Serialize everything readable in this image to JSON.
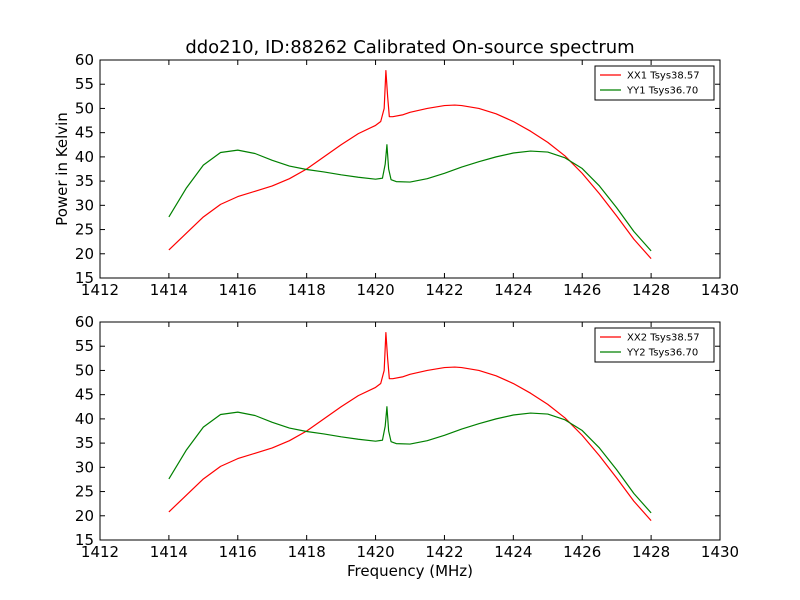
{
  "chart_data": [
    {
      "type": "line",
      "title": "ddo210, ID:88262 Calibrated On-source spectrum",
      "xlabel": "",
      "ylabel": "Power in Kelvin",
      "xlim": [
        1412,
        1430
      ],
      "ylim": [
        15,
        60
      ],
      "xticks": [
        "1412",
        "1414",
        "1416",
        "1418",
        "1420",
        "1422",
        "1424",
        "1426",
        "1428",
        "1430"
      ],
      "yticks": [
        "15",
        "20",
        "25",
        "30",
        "35",
        "40",
        "45",
        "50",
        "55",
        "60"
      ],
      "grid": false,
      "legend_position": "top-right",
      "series": [
        {
          "name": "XX1 Tsys38.57",
          "color": "#ff0000",
          "x": [
            1414.0,
            1414.5,
            1415.0,
            1415.5,
            1416.0,
            1416.5,
            1417.0,
            1417.5,
            1418.0,
            1418.5,
            1419.0,
            1419.5,
            1420.0,
            1420.15,
            1420.25,
            1420.3,
            1420.35,
            1420.4,
            1420.5,
            1420.8,
            1421.0,
            1421.5,
            1422.0,
            1422.3,
            1422.5,
            1423.0,
            1423.5,
            1424.0,
            1424.5,
            1425.0,
            1425.5,
            1426.0,
            1426.5,
            1427.0,
            1427.5,
            1428.0
          ],
          "y": [
            20.8,
            24.2,
            27.6,
            30.2,
            31.8,
            32.9,
            34.0,
            35.5,
            37.5,
            40.0,
            42.5,
            44.8,
            46.5,
            47.3,
            50.0,
            57.8,
            52.5,
            48.3,
            48.3,
            48.7,
            49.2,
            50.0,
            50.6,
            50.7,
            50.6,
            50.0,
            48.9,
            47.3,
            45.3,
            43.0,
            40.2,
            36.6,
            32.4,
            27.8,
            23.0,
            19.0
          ]
        },
        {
          "name": "YY1 Tsys36.70",
          "color": "#008000",
          "x": [
            1414.0,
            1414.5,
            1415.0,
            1415.5,
            1416.0,
            1416.5,
            1417.0,
            1417.5,
            1418.0,
            1418.5,
            1419.0,
            1419.5,
            1420.0,
            1420.2,
            1420.28,
            1420.33,
            1420.38,
            1420.45,
            1420.6,
            1421.0,
            1421.5,
            1422.0,
            1422.5,
            1423.0,
            1423.5,
            1424.0,
            1424.5,
            1425.0,
            1425.5,
            1426.0,
            1426.5,
            1427.0,
            1427.5,
            1428.0
          ],
          "y": [
            27.6,
            33.5,
            38.3,
            40.9,
            41.4,
            40.7,
            39.3,
            38.1,
            37.4,
            36.9,
            36.3,
            35.8,
            35.4,
            35.6,
            38.5,
            42.5,
            37.5,
            35.3,
            34.9,
            34.8,
            35.5,
            36.6,
            37.9,
            39.0,
            40.0,
            40.8,
            41.2,
            41.0,
            39.8,
            37.6,
            34.0,
            29.5,
            24.6,
            20.6
          ]
        }
      ]
    },
    {
      "type": "line",
      "title": "",
      "xlabel": "Frequency (MHz)",
      "ylabel": "",
      "xlim": [
        1412,
        1430
      ],
      "ylim": [
        15,
        60
      ],
      "xticks": [
        "1412",
        "1414",
        "1416",
        "1418",
        "1420",
        "1422",
        "1424",
        "1426",
        "1428",
        "1430"
      ],
      "yticks": [
        "15",
        "20",
        "25",
        "30",
        "35",
        "40",
        "45",
        "50",
        "55",
        "60"
      ],
      "grid": false,
      "legend_position": "top-right",
      "series": [
        {
          "name": "XX2 Tsys38.57",
          "color": "#ff0000",
          "x": [
            1414.0,
            1414.5,
            1415.0,
            1415.5,
            1416.0,
            1416.5,
            1417.0,
            1417.5,
            1418.0,
            1418.5,
            1419.0,
            1419.5,
            1420.0,
            1420.15,
            1420.25,
            1420.3,
            1420.35,
            1420.4,
            1420.5,
            1420.8,
            1421.0,
            1421.5,
            1422.0,
            1422.3,
            1422.5,
            1423.0,
            1423.5,
            1424.0,
            1424.5,
            1425.0,
            1425.5,
            1426.0,
            1426.5,
            1427.0,
            1427.5,
            1428.0
          ],
          "y": [
            20.8,
            24.2,
            27.6,
            30.2,
            31.8,
            32.9,
            34.0,
            35.5,
            37.5,
            40.0,
            42.5,
            44.8,
            46.5,
            47.3,
            50.0,
            57.8,
            52.5,
            48.3,
            48.3,
            48.7,
            49.2,
            50.0,
            50.6,
            50.7,
            50.6,
            50.0,
            48.9,
            47.3,
            45.3,
            43.0,
            40.2,
            36.6,
            32.4,
            27.8,
            23.0,
            19.0
          ]
        },
        {
          "name": "YY2 Tsys36.70",
          "color": "#008000",
          "x": [
            1414.0,
            1414.5,
            1415.0,
            1415.5,
            1416.0,
            1416.5,
            1417.0,
            1417.5,
            1418.0,
            1418.5,
            1419.0,
            1419.5,
            1420.0,
            1420.2,
            1420.28,
            1420.33,
            1420.38,
            1420.45,
            1420.6,
            1421.0,
            1421.5,
            1422.0,
            1422.5,
            1423.0,
            1423.5,
            1424.0,
            1424.5,
            1425.0,
            1425.5,
            1426.0,
            1426.5,
            1427.0,
            1427.5,
            1428.0
          ],
          "y": [
            27.6,
            33.5,
            38.3,
            40.9,
            41.4,
            40.7,
            39.3,
            38.1,
            37.4,
            36.9,
            36.3,
            35.8,
            35.4,
            35.6,
            38.5,
            42.5,
            37.5,
            35.3,
            34.9,
            34.8,
            35.5,
            36.6,
            37.9,
            39.0,
            40.0,
            40.8,
            41.2,
            41.0,
            39.8,
            37.6,
            34.0,
            29.5,
            24.6,
            20.6
          ]
        }
      ]
    }
  ]
}
